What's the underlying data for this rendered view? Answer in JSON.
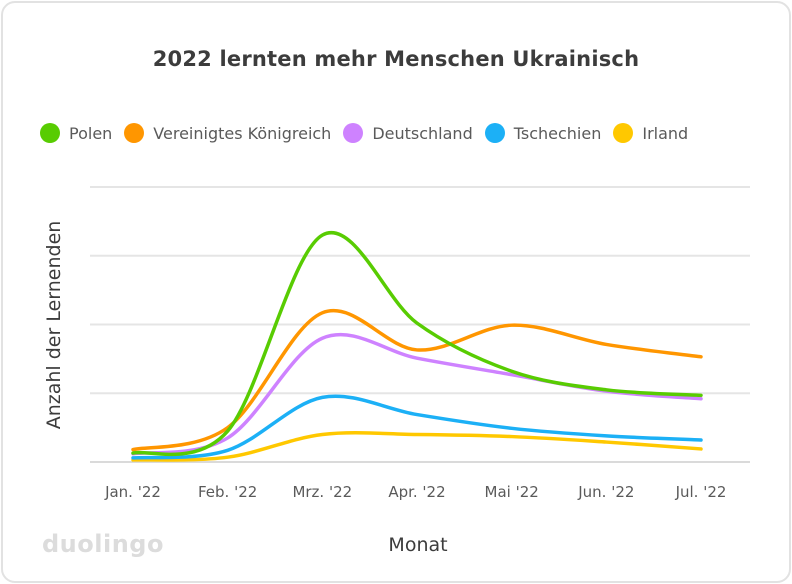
{
  "brand": {
    "logo": "duolingo"
  },
  "chart_data": {
    "type": "line",
    "title": "2022 lernten mehr Menschen Ukrainisch",
    "xlabel": "Monat",
    "ylabel": "Anzahl der Lernenden",
    "categories": [
      "Jan. '22",
      "Feb. '22",
      "Mrz. '22",
      "Apr. '22",
      "Mai '22",
      "Jun. '22",
      "Jul. '22"
    ],
    "ylim": [
      0,
      4
    ],
    "grid": true,
    "legend_position": "top",
    "series": [
      {
        "name": "Polen",
        "color": "#58cc02",
        "values": [
          0.13,
          0.45,
          3.3,
          2.02,
          1.32,
          1.05,
          0.97
        ]
      },
      {
        "name": "Vereinigtes Königreich",
        "color": "#ff9600",
        "values": [
          0.18,
          0.5,
          2.17,
          1.63,
          1.99,
          1.71,
          1.53
        ]
      },
      {
        "name": "Deutschland",
        "color": "#ce82ff",
        "values": [
          0.12,
          0.35,
          1.8,
          1.51,
          1.27,
          1.03,
          0.92
        ]
      },
      {
        "name": "Tschechien",
        "color": "#1cb0f6",
        "values": [
          0.06,
          0.17,
          0.94,
          0.69,
          0.49,
          0.38,
          0.32
        ]
      },
      {
        "name": "Irland",
        "color": "#ffc800",
        "values": [
          0.03,
          0.07,
          0.4,
          0.4,
          0.37,
          0.29,
          0.19
        ]
      }
    ]
  }
}
